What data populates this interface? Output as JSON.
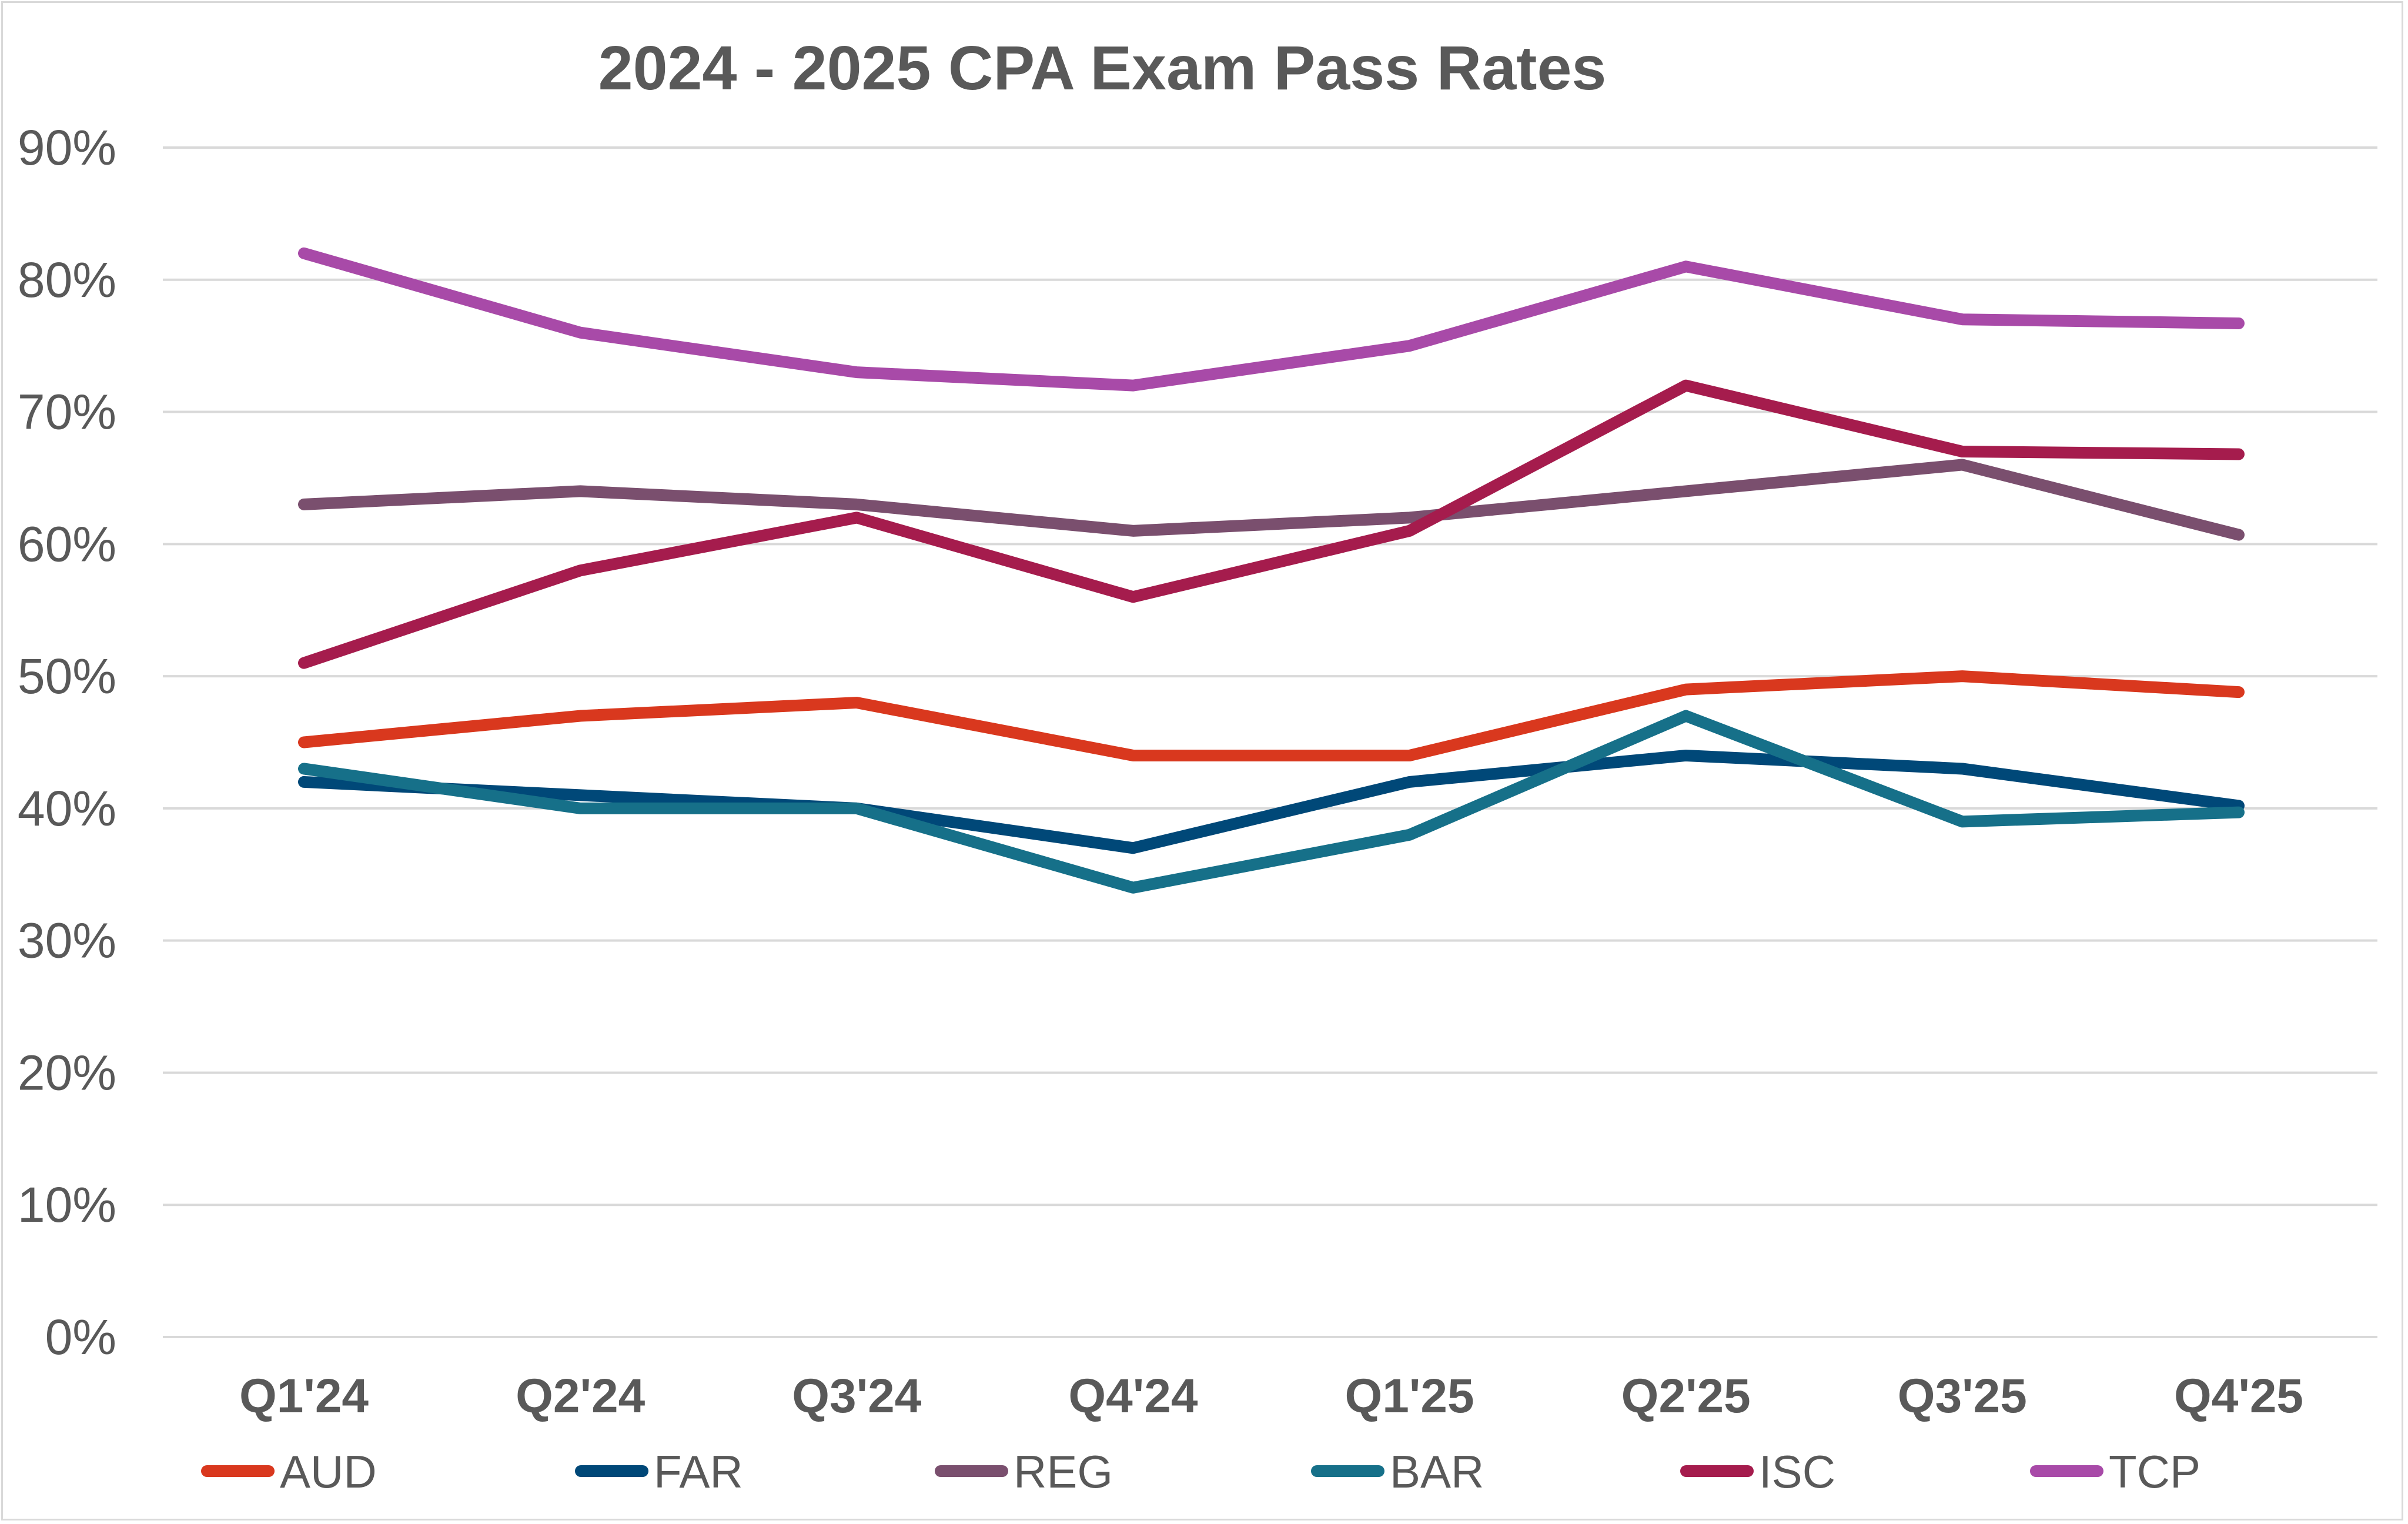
{
  "chart_data": {
    "type": "line",
    "title": "2024 - 2025 CPA Exam Pass Rates",
    "xlabel": "",
    "ylabel": "",
    "categories": [
      "Q1'24",
      "Q2'24",
      "Q3'24",
      "Q4'24",
      "Q1'25",
      "Q2'25",
      "Q3'25",
      "Q4'25"
    ],
    "ylim": [
      0,
      90
    ],
    "yticks": [
      0,
      10,
      20,
      30,
      40,
      50,
      60,
      70,
      80,
      90
    ],
    "ytick_labels": [
      "0%",
      "10%",
      "20%",
      "30%",
      "40%",
      "50%",
      "60%",
      "70%",
      "80%",
      "90%"
    ],
    "grid": true,
    "legend_position": "bottom",
    "series": [
      {
        "name": "AUD",
        "color": "#d9381e",
        "values": [
          45,
          47,
          48,
          44,
          44,
          49,
          50,
          48.8
        ]
      },
      {
        "name": "FAR",
        "color": "#004878",
        "values": [
          42,
          41,
          40,
          37,
          42,
          44,
          43,
          40.2
        ]
      },
      {
        "name": "REG",
        "color": "#7a4f6e",
        "values": [
          63,
          64,
          63,
          61,
          62,
          64,
          66,
          60.7
        ]
      },
      {
        "name": "BAR",
        "color": "#167089",
        "values": [
          43,
          40,
          40,
          34,
          38,
          47,
          39,
          39.7
        ]
      },
      {
        "name": "ISC",
        "color": "#a51c4d",
        "values": [
          51,
          58,
          62,
          56,
          61,
          72,
          67,
          66.8
        ]
      },
      {
        "name": "TCP",
        "color": "#a84aa8",
        "values": [
          82,
          76,
          73,
          72,
          75,
          81,
          77,
          76.7
        ]
      }
    ]
  }
}
